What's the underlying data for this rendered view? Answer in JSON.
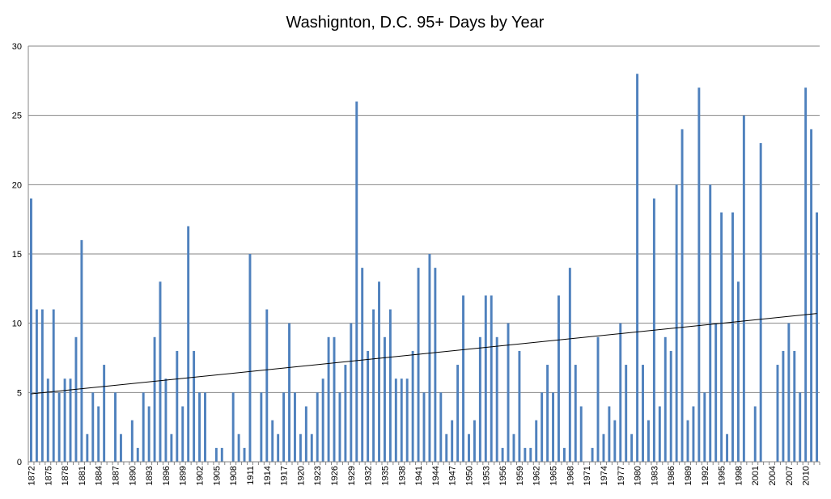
{
  "chart_data": {
    "type": "bar",
    "title": "Washignton, D.C. 95+ Days by Year",
    "xlabel": "",
    "ylabel": "",
    "ylim": [
      0,
      30
    ],
    "yticks": [
      0,
      5,
      10,
      15,
      20,
      25,
      30
    ],
    "grid": "horizontal",
    "legend": "none",
    "colors": {
      "bar": "#4f81bd",
      "trend": "#000000",
      "grid": "#868686"
    },
    "x": [
      1872,
      1873,
      1874,
      1875,
      1876,
      1877,
      1878,
      1879,
      1880,
      1881,
      1882,
      1883,
      1884,
      1885,
      1886,
      1887,
      1888,
      1889,
      1890,
      1891,
      1892,
      1893,
      1894,
      1895,
      1896,
      1897,
      1898,
      1899,
      1900,
      1901,
      1902,
      1903,
      1904,
      1905,
      1906,
      1907,
      1908,
      1909,
      1910,
      1911,
      1912,
      1913,
      1914,
      1915,
      1916,
      1917,
      1918,
      1919,
      1920,
      1921,
      1922,
      1923,
      1924,
      1925,
      1926,
      1927,
      1928,
      1929,
      1930,
      1931,
      1932,
      1933,
      1934,
      1935,
      1936,
      1937,
      1938,
      1939,
      1940,
      1941,
      1942,
      1943,
      1944,
      1945,
      1946,
      1947,
      1948,
      1949,
      1950,
      1951,
      1952,
      1953,
      1954,
      1955,
      1956,
      1957,
      1958,
      1959,
      1960,
      1961,
      1962,
      1963,
      1964,
      1965,
      1966,
      1967,
      1968,
      1969,
      1970,
      1971,
      1972,
      1973,
      1974,
      1975,
      1976,
      1977,
      1978,
      1979,
      1980,
      1981,
      1982,
      1983,
      1984,
      1985,
      1986,
      1987,
      1988,
      1989,
      1990,
      1991,
      1992,
      1993,
      1994,
      1995,
      1996,
      1997,
      1998,
      1999,
      2000,
      2001,
      2002,
      2003,
      2004,
      2005,
      2006,
      2007,
      2008,
      2009,
      2010,
      2011,
      2012
    ],
    "tick_labels": [
      1872,
      1875,
      1878,
      1881,
      1884,
      1887,
      1890,
      1893,
      1896,
      1899,
      1902,
      1905,
      1908,
      1911,
      1914,
      1917,
      1920,
      1923,
      1926,
      1929,
      1932,
      1935,
      1938,
      1941,
      1944,
      1947,
      1950,
      1953,
      1956,
      1959,
      1962,
      1965,
      1968,
      1971,
      1974,
      1977,
      1980,
      1983,
      1986,
      1989,
      1992,
      1995,
      1998,
      2001,
      2004,
      2007,
      2010
    ],
    "values": [
      19,
      11,
      11,
      6,
      11,
      5,
      6,
      6,
      9,
      16,
      2,
      5,
      4,
      7,
      0,
      5,
      2,
      0,
      3,
      1,
      5,
      4,
      9,
      13,
      6,
      2,
      8,
      4,
      17,
      8,
      5,
      5,
      0,
      1,
      1,
      0,
      5,
      2,
      1,
      15,
      0,
      5,
      11,
      3,
      2,
      5,
      10,
      5,
      2,
      4,
      2,
      5,
      6,
      9,
      9,
      5,
      7,
      10,
      26,
      14,
      8,
      11,
      13,
      9,
      11,
      6,
      6,
      6,
      8,
      14,
      5,
      15,
      14,
      5,
      2,
      3,
      7,
      12,
      2,
      3,
      9,
      12,
      12,
      9,
      1,
      10,
      2,
      8,
      1,
      1,
      3,
      5,
      7,
      5,
      12,
      1,
      14,
      7,
      4,
      0,
      1,
      9,
      2,
      4,
      3,
      10,
      7,
      2,
      28,
      7,
      3,
      19,
      4,
      9,
      8,
      20,
      24,
      3,
      4,
      27,
      5,
      20,
      10,
      18,
      2,
      18,
      13,
      25,
      0,
      4,
      23,
      0,
      0,
      7,
      8,
      10,
      8,
      5,
      27,
      24,
      18
    ],
    "trendline": {
      "type": "linear",
      "start": 4.9,
      "end": 10.7
    }
  }
}
